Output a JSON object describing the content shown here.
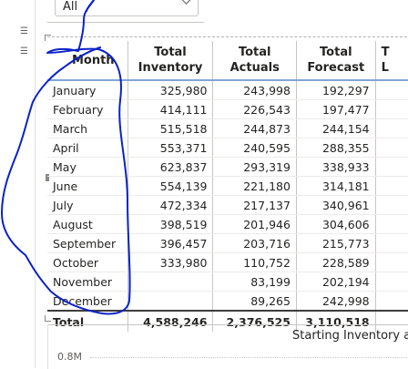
{
  "slicer": {
    "value": "All"
  },
  "table": {
    "headers": [
      "Month",
      "Total\nInventory",
      "Total\nActuals",
      "Total\nForecast",
      "T\nL"
    ],
    "rows": [
      [
        "January",
        "325,980",
        "243,998",
        "192,297"
      ],
      [
        "February",
        "414,111",
        "226,543",
        "197,477"
      ],
      [
        "March",
        "515,518",
        "244,873",
        "244,154"
      ],
      [
        "April",
        "553,371",
        "240,595",
        "288,355"
      ],
      [
        "May",
        "623,837",
        "293,319",
        "338,933"
      ],
      [
        "June",
        "554,139",
        "221,180",
        "314,181"
      ],
      [
        "July",
        "472,334",
        "217,137",
        "340,961"
      ],
      [
        "August",
        "398,519",
        "201,946",
        "304,606"
      ],
      [
        "September",
        "396,457",
        "203,716",
        "215,773"
      ],
      [
        "October",
        "333,980",
        "110,752",
        "228,589"
      ],
      [
        "November",
        "",
        "83,199",
        "202,194"
      ],
      [
        "December",
        "",
        "89,265",
        "242,998"
      ]
    ],
    "total": [
      "Total",
      "4,588,246",
      "2,376,525",
      "3,110,518"
    ]
  },
  "chart2": {
    "title": "Starting Inventory a",
    "axis_label": "0.8M"
  },
  "colors": {
    "header_underline": "#7fa7d4",
    "pen": "#0a22c8"
  }
}
